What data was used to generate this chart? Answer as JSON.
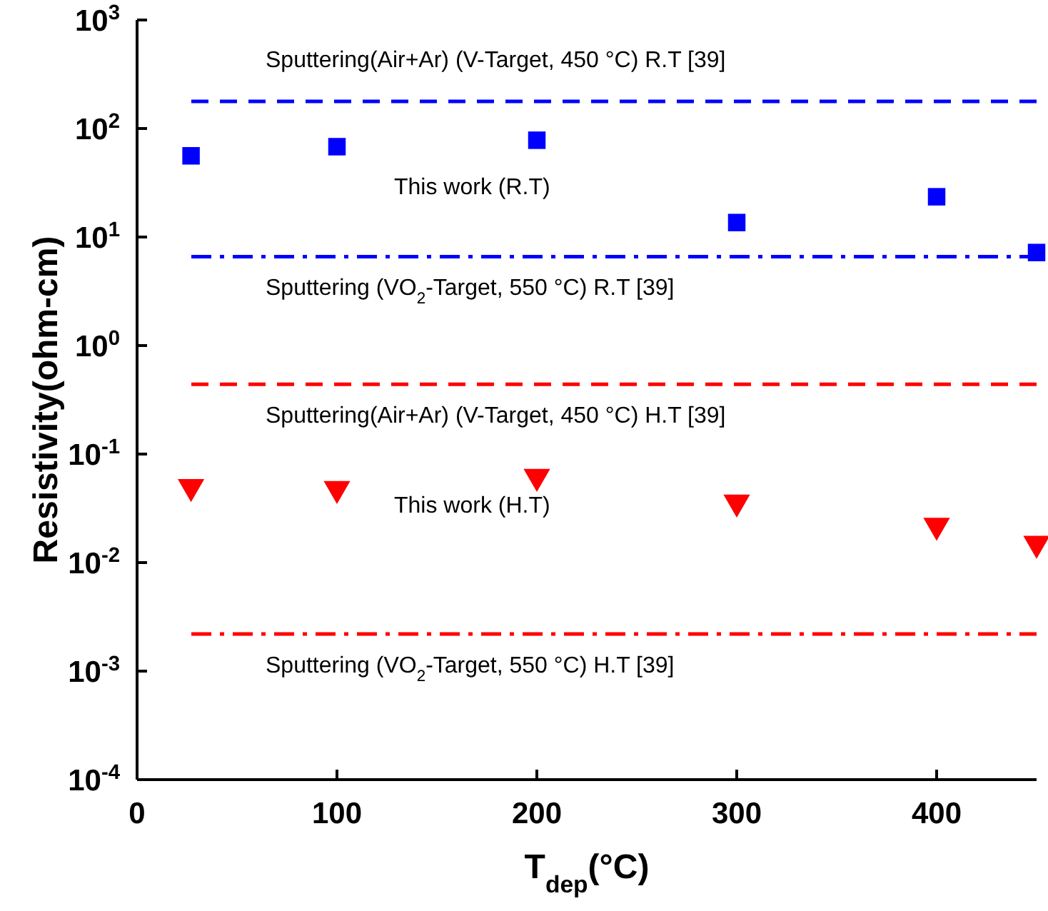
{
  "chart_data": {
    "type": "scatter",
    "xlabel": "T$_{dep}$(°C)",
    "ylabel": "Resistivity(ohm-cm)",
    "x": [
      27,
      100,
      200,
      300,
      400,
      450
    ],
    "series": [
      {
        "name": "This work (R.T)",
        "color": "#0000ff",
        "marker": "square",
        "values": [
          56,
          68,
          78,
          13.6,
          23.5,
          7.2
        ]
      },
      {
        "name": "This work (H.T)",
        "color": "#ff0000",
        "marker": "triangle",
        "values": [
          0.05,
          0.048,
          0.062,
          0.036,
          0.022,
          0.015
        ]
      }
    ],
    "ref_lines": [
      {
        "axis": "y",
        "value": 178,
        "label": "Sputtering(Air+Ar) (V-Target, 450 °C) R.T [39]",
        "color": "#0000ff",
        "line_style": "dashed"
      },
      {
        "axis": "y",
        "value": 6.6,
        "label": "Sputtering (VO$_{2}$-Target, 550 °C) R.T [39]",
        "color": "#0000ff",
        "line_style": "dashdot"
      },
      {
        "axis": "y",
        "value": 0.44,
        "label": "Sputtering(Air+Ar) (V-Target, 450 °C) H.T [39]",
        "color": "#ff0000",
        "line_style": "dashed"
      },
      {
        "axis": "y",
        "value": 0.0022,
        "label": "Sputtering (VO$_{2}$-Target, 550 °C) H.T [39]",
        "color": "#ff0000",
        "line_style": "dashdot"
      }
    ],
    "log": "y",
    "xlim": [
      0,
      450
    ],
    "xticks": [
      0,
      100,
      200,
      300,
      400
    ],
    "ylim": [
      0.0001,
      1000
    ],
    "yticks": [
      {
        "value": 0.0001,
        "label": "10$^{-4}$"
      },
      {
        "value": 0.001,
        "label": "10$^{-3}$"
      },
      {
        "value": 0.01,
        "label": "10$^{-2}$"
      },
      {
        "value": 0.1,
        "label": "10$^{-1}$"
      },
      {
        "value": 1,
        "label": "10$^{0}$"
      },
      {
        "value": 10,
        "label": "10$^{1}$"
      },
      {
        "value": 100,
        "label": "10$^{2}$"
      },
      {
        "value": 1000,
        "label": "10$^{3}$"
      }
    ],
    "grid": false
  }
}
